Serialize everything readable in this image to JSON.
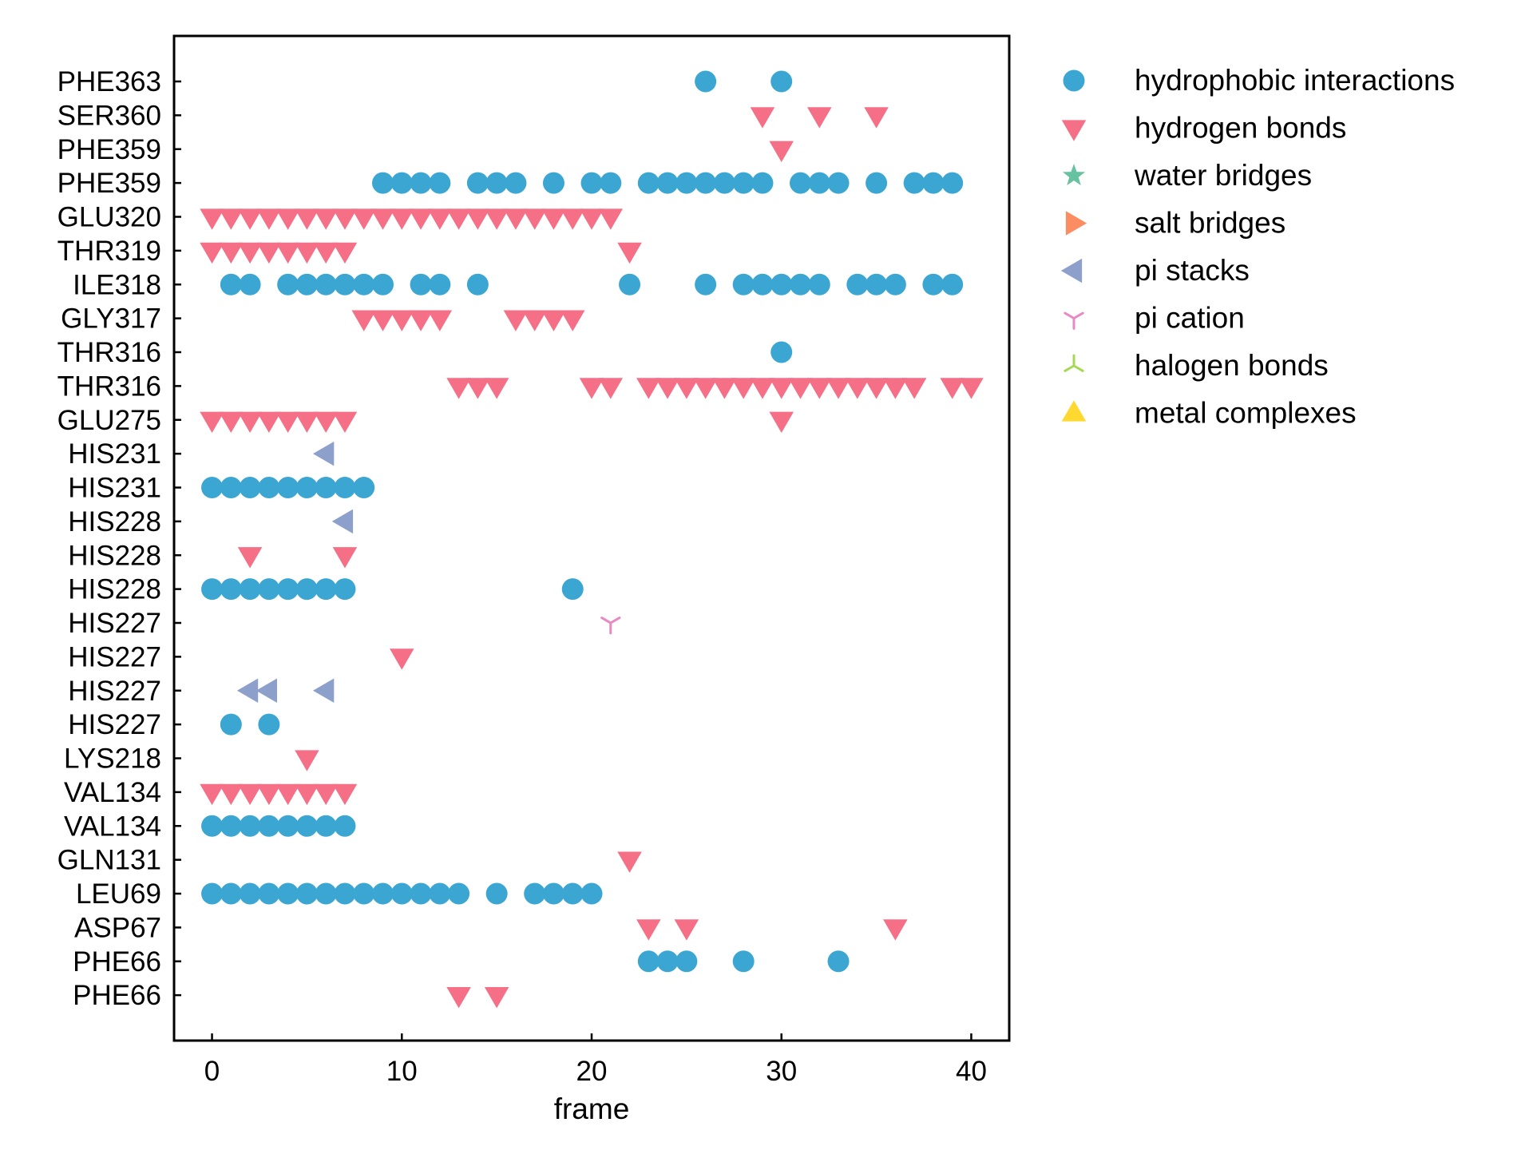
{
  "chart_data": {
    "type": "scatter",
    "title": "",
    "xlabel": "frame",
    "ylabel": "",
    "xlim": [
      -2,
      42
    ],
    "xticks": [
      0,
      10,
      20,
      30,
      40
    ],
    "grid": false,
    "legend_position": "outside-right",
    "categories": [
      "PHE363",
      "SER360",
      "PHE359",
      "PHE359",
      "GLU320",
      "THR319",
      "ILE318",
      "GLY317",
      "THR316",
      "THR316",
      "GLU275",
      "HIS231",
      "HIS231",
      "HIS228",
      "HIS228",
      "HIS228",
      "HIS227",
      "HIS227",
      "HIS227",
      "HIS227",
      "LYS218",
      "VAL134",
      "VAL134",
      "GLN131",
      "LEU69",
      "ASP67",
      "PHE66",
      "PHE66"
    ],
    "legend": [
      {
        "name": "hydrophobic interactions",
        "marker": "circle",
        "color": "#3ca6d3"
      },
      {
        "name": "hydrogen bonds",
        "marker": "triangle-down",
        "color": "#f56f86"
      },
      {
        "name": "water bridges",
        "marker": "star",
        "color": "#66c2a0"
      },
      {
        "name": "salt bridges",
        "marker": "triangle-right",
        "color": "#fc8d62"
      },
      {
        "name": "pi stacks",
        "marker": "triangle-left",
        "color": "#8da0cb"
      },
      {
        "name": "pi cation",
        "marker": "tri-down",
        "color": "#e78ac3"
      },
      {
        "name": "halogen bonds",
        "marker": "tri-up",
        "color": "#a6d854"
      },
      {
        "name": "metal complexes",
        "marker": "triangle-up",
        "color": "#ffd92f"
      }
    ],
    "points": [
      {
        "row": 0,
        "type": "hydrophobic interactions",
        "frames": [
          26,
          30
        ]
      },
      {
        "row": 1,
        "type": "hydrogen bonds",
        "frames": [
          29,
          32,
          35
        ]
      },
      {
        "row": 2,
        "type": "hydrogen bonds",
        "frames": [
          30
        ]
      },
      {
        "row": 3,
        "type": "hydrophobic interactions",
        "frames": [
          9,
          10,
          11,
          12,
          14,
          15,
          16,
          18,
          20,
          21,
          23,
          24,
          25,
          26,
          27,
          28,
          29,
          31,
          32,
          33,
          35,
          37,
          38,
          39
        ]
      },
      {
        "row": 4,
        "type": "hydrogen bonds",
        "frames": [
          0,
          1,
          2,
          3,
          4,
          5,
          6,
          7,
          8,
          9,
          10,
          11,
          12,
          13,
          14,
          15,
          16,
          17,
          18,
          19,
          20,
          21
        ]
      },
      {
        "row": 5,
        "type": "hydrogen bonds",
        "frames": [
          0,
          1,
          2,
          3,
          4,
          5,
          6,
          7,
          22
        ]
      },
      {
        "row": 6,
        "type": "hydrophobic interactions",
        "frames": [
          1,
          2,
          4,
          5,
          6,
          7,
          8,
          9,
          11,
          12,
          14,
          22,
          26,
          28,
          29,
          30,
          31,
          32,
          34,
          35,
          36,
          38,
          39
        ]
      },
      {
        "row": 7,
        "type": "hydrogen bonds",
        "frames": [
          8,
          9,
          10,
          11,
          12,
          16,
          17,
          18,
          19
        ]
      },
      {
        "row": 8,
        "type": "hydrophobic interactions",
        "frames": [
          30
        ]
      },
      {
        "row": 9,
        "type": "hydrogen bonds",
        "frames": [
          13,
          14,
          15,
          20,
          21,
          23,
          24,
          25,
          26,
          27,
          28,
          29,
          30,
          31,
          32,
          33,
          34,
          35,
          36,
          37,
          39,
          40
        ]
      },
      {
        "row": 10,
        "type": "hydrogen bonds",
        "frames": [
          0,
          1,
          2,
          3,
          4,
          5,
          6,
          7,
          30
        ]
      },
      {
        "row": 11,
        "type": "pi stacks",
        "frames": [
          6
        ]
      },
      {
        "row": 12,
        "type": "hydrophobic interactions",
        "frames": [
          0,
          1,
          2,
          3,
          4,
          5,
          6,
          7,
          8
        ]
      },
      {
        "row": 13,
        "type": "pi stacks",
        "frames": [
          7
        ]
      },
      {
        "row": 14,
        "type": "hydrogen bonds",
        "frames": [
          2,
          7
        ]
      },
      {
        "row": 15,
        "type": "hydrophobic interactions",
        "frames": [
          0,
          1,
          2,
          3,
          4,
          5,
          6,
          7,
          19
        ]
      },
      {
        "row": 16,
        "type": "pi cation",
        "frames": [
          21
        ]
      },
      {
        "row": 17,
        "type": "hydrogen bonds",
        "frames": [
          10
        ]
      },
      {
        "row": 18,
        "type": "pi stacks",
        "frames": [
          2,
          3,
          6
        ]
      },
      {
        "row": 19,
        "type": "hydrophobic interactions",
        "frames": [
          1,
          3
        ]
      },
      {
        "row": 20,
        "type": "hydrogen bonds",
        "frames": [
          5
        ]
      },
      {
        "row": 21,
        "type": "hydrogen bonds",
        "frames": [
          0,
          1,
          2,
          3,
          4,
          5,
          6,
          7
        ]
      },
      {
        "row": 22,
        "type": "hydrophobic interactions",
        "frames": [
          0,
          1,
          2,
          3,
          4,
          5,
          6,
          7
        ]
      },
      {
        "row": 23,
        "type": "hydrogen bonds",
        "frames": [
          22
        ]
      },
      {
        "row": 24,
        "type": "hydrophobic interactions",
        "frames": [
          0,
          1,
          2,
          3,
          4,
          5,
          6,
          7,
          8,
          9,
          10,
          11,
          12,
          13,
          15,
          17,
          18,
          19,
          20
        ]
      },
      {
        "row": 25,
        "type": "hydrogen bonds",
        "frames": [
          23,
          25,
          36
        ]
      },
      {
        "row": 26,
        "type": "hydrophobic interactions",
        "frames": [
          23,
          24,
          25,
          28,
          33
        ]
      },
      {
        "row": 27,
        "type": "hydrogen bonds",
        "frames": [
          13,
          15
        ]
      }
    ]
  }
}
